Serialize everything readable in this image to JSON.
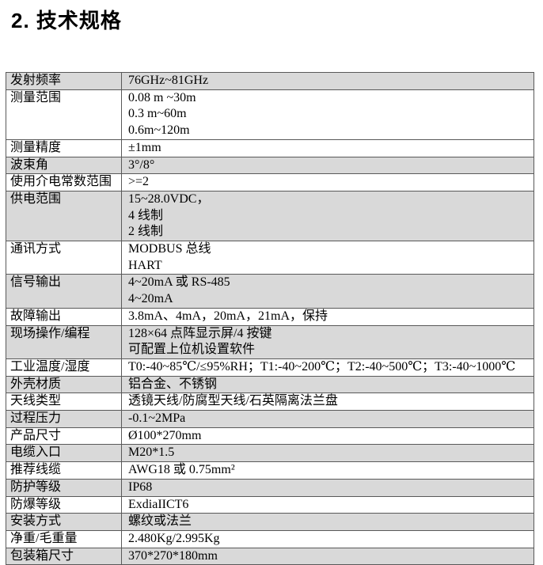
{
  "title": "2. 技术规格",
  "colors": {
    "row_shade": "#d9d9d9",
    "border_inner": "#595959",
    "border_outer": "#262626",
    "text": "#000000",
    "background": "#ffffff"
  },
  "table": {
    "rows": [
      {
        "label": "发射频率",
        "values": [
          "76GHz~81GHz"
        ],
        "shaded": true
      },
      {
        "label": "测量范围",
        "values": [
          "0.08 m ~30m",
          "0.3 m~60m",
          "0.6m~120m"
        ],
        "shaded": false
      },
      {
        "label": "测量精度",
        "values": [
          "±1mm"
        ],
        "shaded": false
      },
      {
        "label": "波束角",
        "values": [
          "3°/8°"
        ],
        "shaded": true
      },
      {
        "label": "使用介电常数范围",
        "values": [
          ">=2"
        ],
        "shaded": false
      },
      {
        "label": "供电范围",
        "values": [
          "15~28.0VDC，",
          "4 线制",
          "2 线制"
        ],
        "shaded": true
      },
      {
        "label": "通讯方式",
        "values": [
          "MODBUS 总线",
          "HART"
        ],
        "shaded": false
      },
      {
        "label": "信号输出",
        "values": [
          "4~20mA 或 RS-485",
          "4~20mA"
        ],
        "shaded": true
      },
      {
        "label": "故障输出",
        "values": [
          "3.8mA、4mA，20mA，21mA，保持"
        ],
        "shaded": false
      },
      {
        "label": "现场操作/编程",
        "values": [
          "128×64 点阵显示屏/4 按键",
          "可配置上位机设置软件"
        ],
        "shaded": true
      },
      {
        "label": "工业温度/湿度",
        "values": [
          "T0:-40~85℃/≤95%RH；T1:-40~200℃；T2:-40~500℃；T3:-40~1000℃"
        ],
        "shaded": false
      },
      {
        "label": "外壳材质",
        "values": [
          "铝合金、不锈钢"
        ],
        "shaded": true
      },
      {
        "label": "天线类型",
        "values": [
          "透镜天线/防腐型天线/石英隔离法兰盘"
        ],
        "shaded": false
      },
      {
        "label": "过程压力",
        "values": [
          "-0.1~2MPa"
        ],
        "shaded": true
      },
      {
        "label": "产品尺寸",
        "values": [
          "Ø100*270mm"
        ],
        "shaded": false
      },
      {
        "label": "电缆入口",
        "values": [
          "M20*1.5"
        ],
        "shaded": true
      },
      {
        "label": "推荐线缆",
        "values": [
          "AWG18 或 0.75mm²"
        ],
        "shaded": false
      },
      {
        "label": "防护等级",
        "values": [
          "IP68"
        ],
        "shaded": true
      },
      {
        "label": "防爆等级",
        "values": [
          "ExdiaIICT6"
        ],
        "shaded": false
      },
      {
        "label": "安装方式",
        "values": [
          "螺纹或法兰"
        ],
        "shaded": true
      },
      {
        "label": "净重/毛重量",
        "values": [
          "2.480Kg/2.995Kg"
        ],
        "shaded": false
      },
      {
        "label": "包装箱尺寸",
        "values": [
          "370*270*180mm"
        ],
        "shaded": true
      }
    ]
  }
}
